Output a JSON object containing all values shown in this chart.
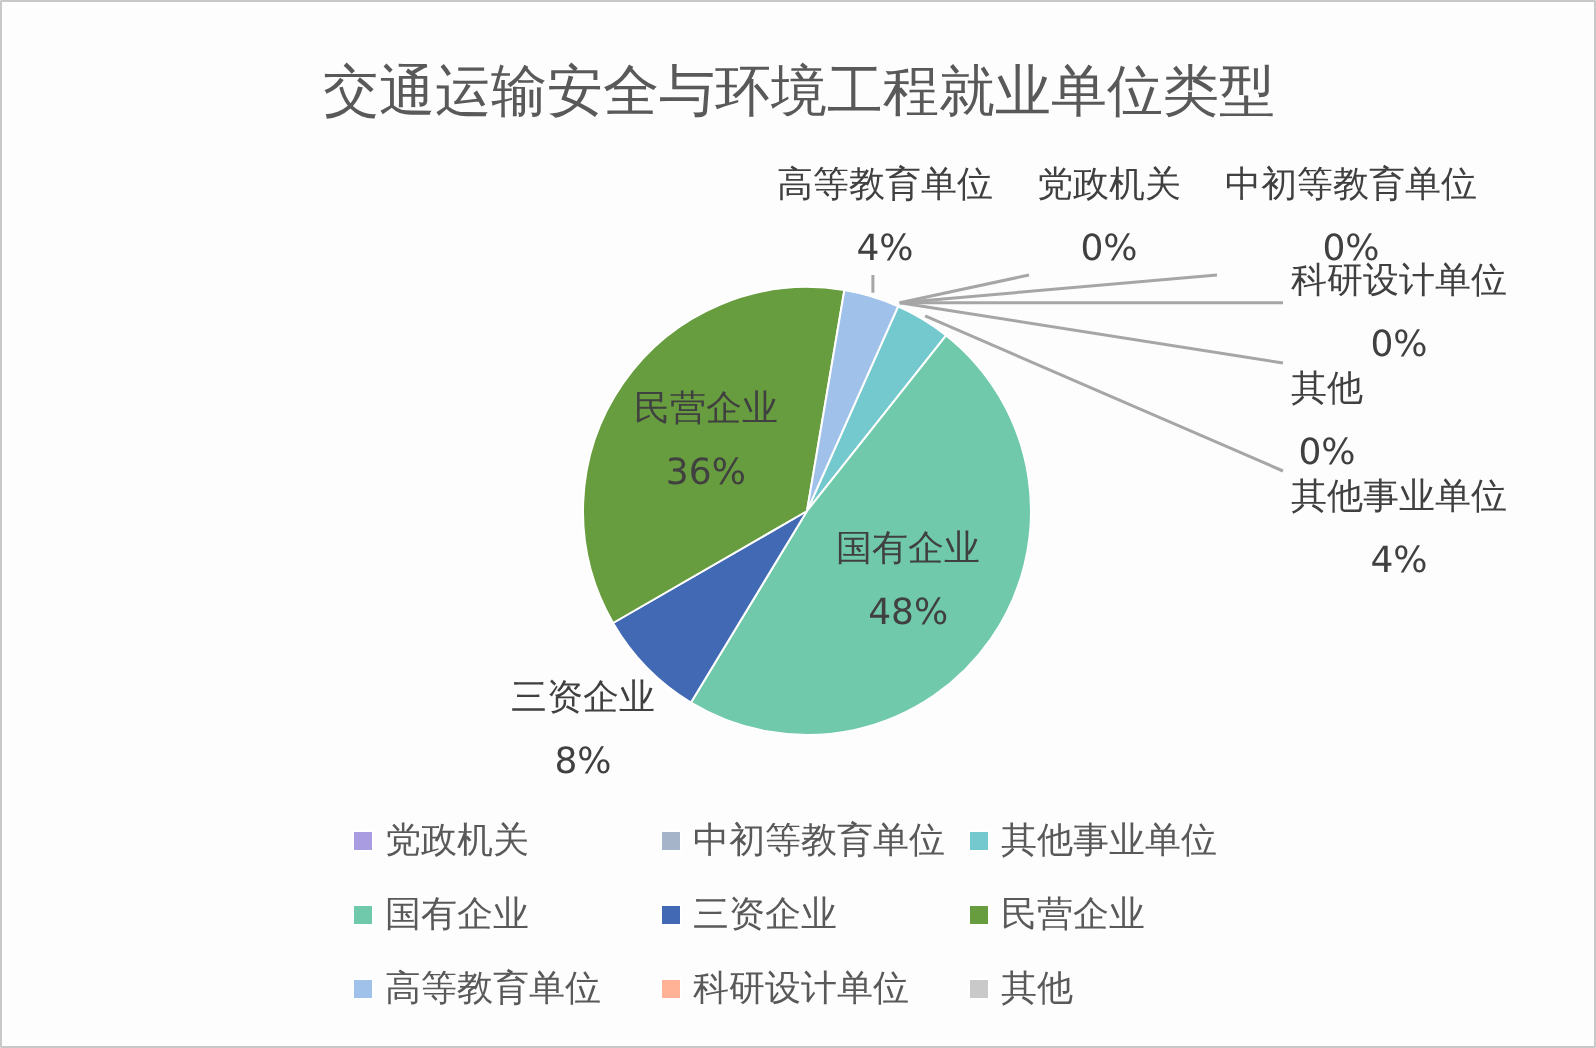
{
  "chart_data": {
    "type": "pie",
    "title": "交通运输安全与环境工程就业单位类型",
    "categories": [
      "党政机关",
      "中初等教育单位",
      "其他事业单位",
      "国有企业",
      "三资企业",
      "民营企业",
      "高等教育单位",
      "科研设计单位",
      "其他"
    ],
    "values": [
      0,
      0,
      4,
      48,
      8,
      36,
      4,
      0,
      0
    ],
    "value_labels": [
      "0%",
      "0%",
      "4%",
      "48%",
      "8%",
      "36%",
      "4%",
      "0%",
      "0%"
    ],
    "colors": [
      "#a99ce0",
      "#a6b4c9",
      "#74c9cf",
      "#70c9aa",
      "#4169b4",
      "#679d3e",
      "#a0c2ea",
      "#ffb296",
      "#c9c9c9"
    ],
    "legend": "bottom"
  }
}
